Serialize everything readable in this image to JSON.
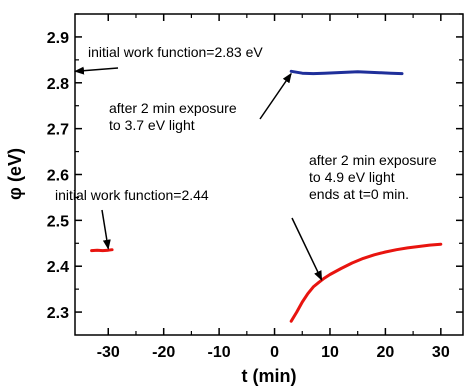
{
  "chart_data": {
    "type": "line",
    "xlabel": "t (min)",
    "ylabel": "φ (eV)",
    "xlim": [
      -36,
      34
    ],
    "ylim": [
      2.25,
      2.95
    ],
    "x_ticks": [
      -30,
      -20,
      -10,
      0,
      10,
      20,
      30
    ],
    "y_ticks": [
      2.3,
      2.4,
      2.5,
      2.6,
      2.7,
      2.8,
      2.9
    ],
    "x_tick_labels": [
      "-30",
      "-20",
      "-10",
      "0",
      "10",
      "20",
      "30"
    ],
    "y_tick_labels": [
      "2.3",
      "2.4",
      "2.5",
      "2.6",
      "2.7",
      "2.8",
      "2.9"
    ],
    "grid": false,
    "series": [
      {
        "color": "#e8140f",
        "x": [
          -33,
          -32,
          -31,
          -30,
          -29.3
        ],
        "y": [
          2.434,
          2.435,
          2.434,
          2.435,
          2.436
        ]
      },
      {
        "color": "#1f2f9a",
        "x": [
          3,
          5,
          7,
          9,
          11,
          13,
          15,
          17,
          19,
          21,
          23
        ],
        "y": [
          2.825,
          2.821,
          2.82,
          2.821,
          2.822,
          2.823,
          2.824,
          2.823,
          2.822,
          2.821,
          2.82
        ]
      },
      {
        "color": "#e8140f",
        "x": [
          3,
          4,
          5,
          6,
          7,
          8,
          9,
          10,
          12,
          14,
          16,
          18,
          20,
          22,
          24,
          26,
          28,
          30
        ],
        "y": [
          2.28,
          2.3,
          2.322,
          2.34,
          2.355,
          2.365,
          2.374,
          2.382,
          2.395,
          2.407,
          2.417,
          2.425,
          2.431,
          2.436,
          2.44,
          2.443,
          2.446,
          2.448
        ]
      }
    ],
    "annotations": [
      {
        "lines": [
          "initial work function=2.83 eV"
        ],
        "arrow_to": [
          -36,
          2.825
        ]
      },
      {
        "lines": [
          "after 2 min exposure",
          "to 3.7 eV light"
        ],
        "arrow_to": [
          3,
          2.82
        ]
      },
      {
        "lines": [
          "initial work function=2.44"
        ],
        "arrow_to": [
          -30,
          2.438
        ]
      },
      {
        "lines": [
          "after 2 min exposure",
          "to 4.9 eV light",
          "ends at t=0 min."
        ],
        "arrow_to": [
          8.5,
          2.37
        ]
      }
    ]
  }
}
